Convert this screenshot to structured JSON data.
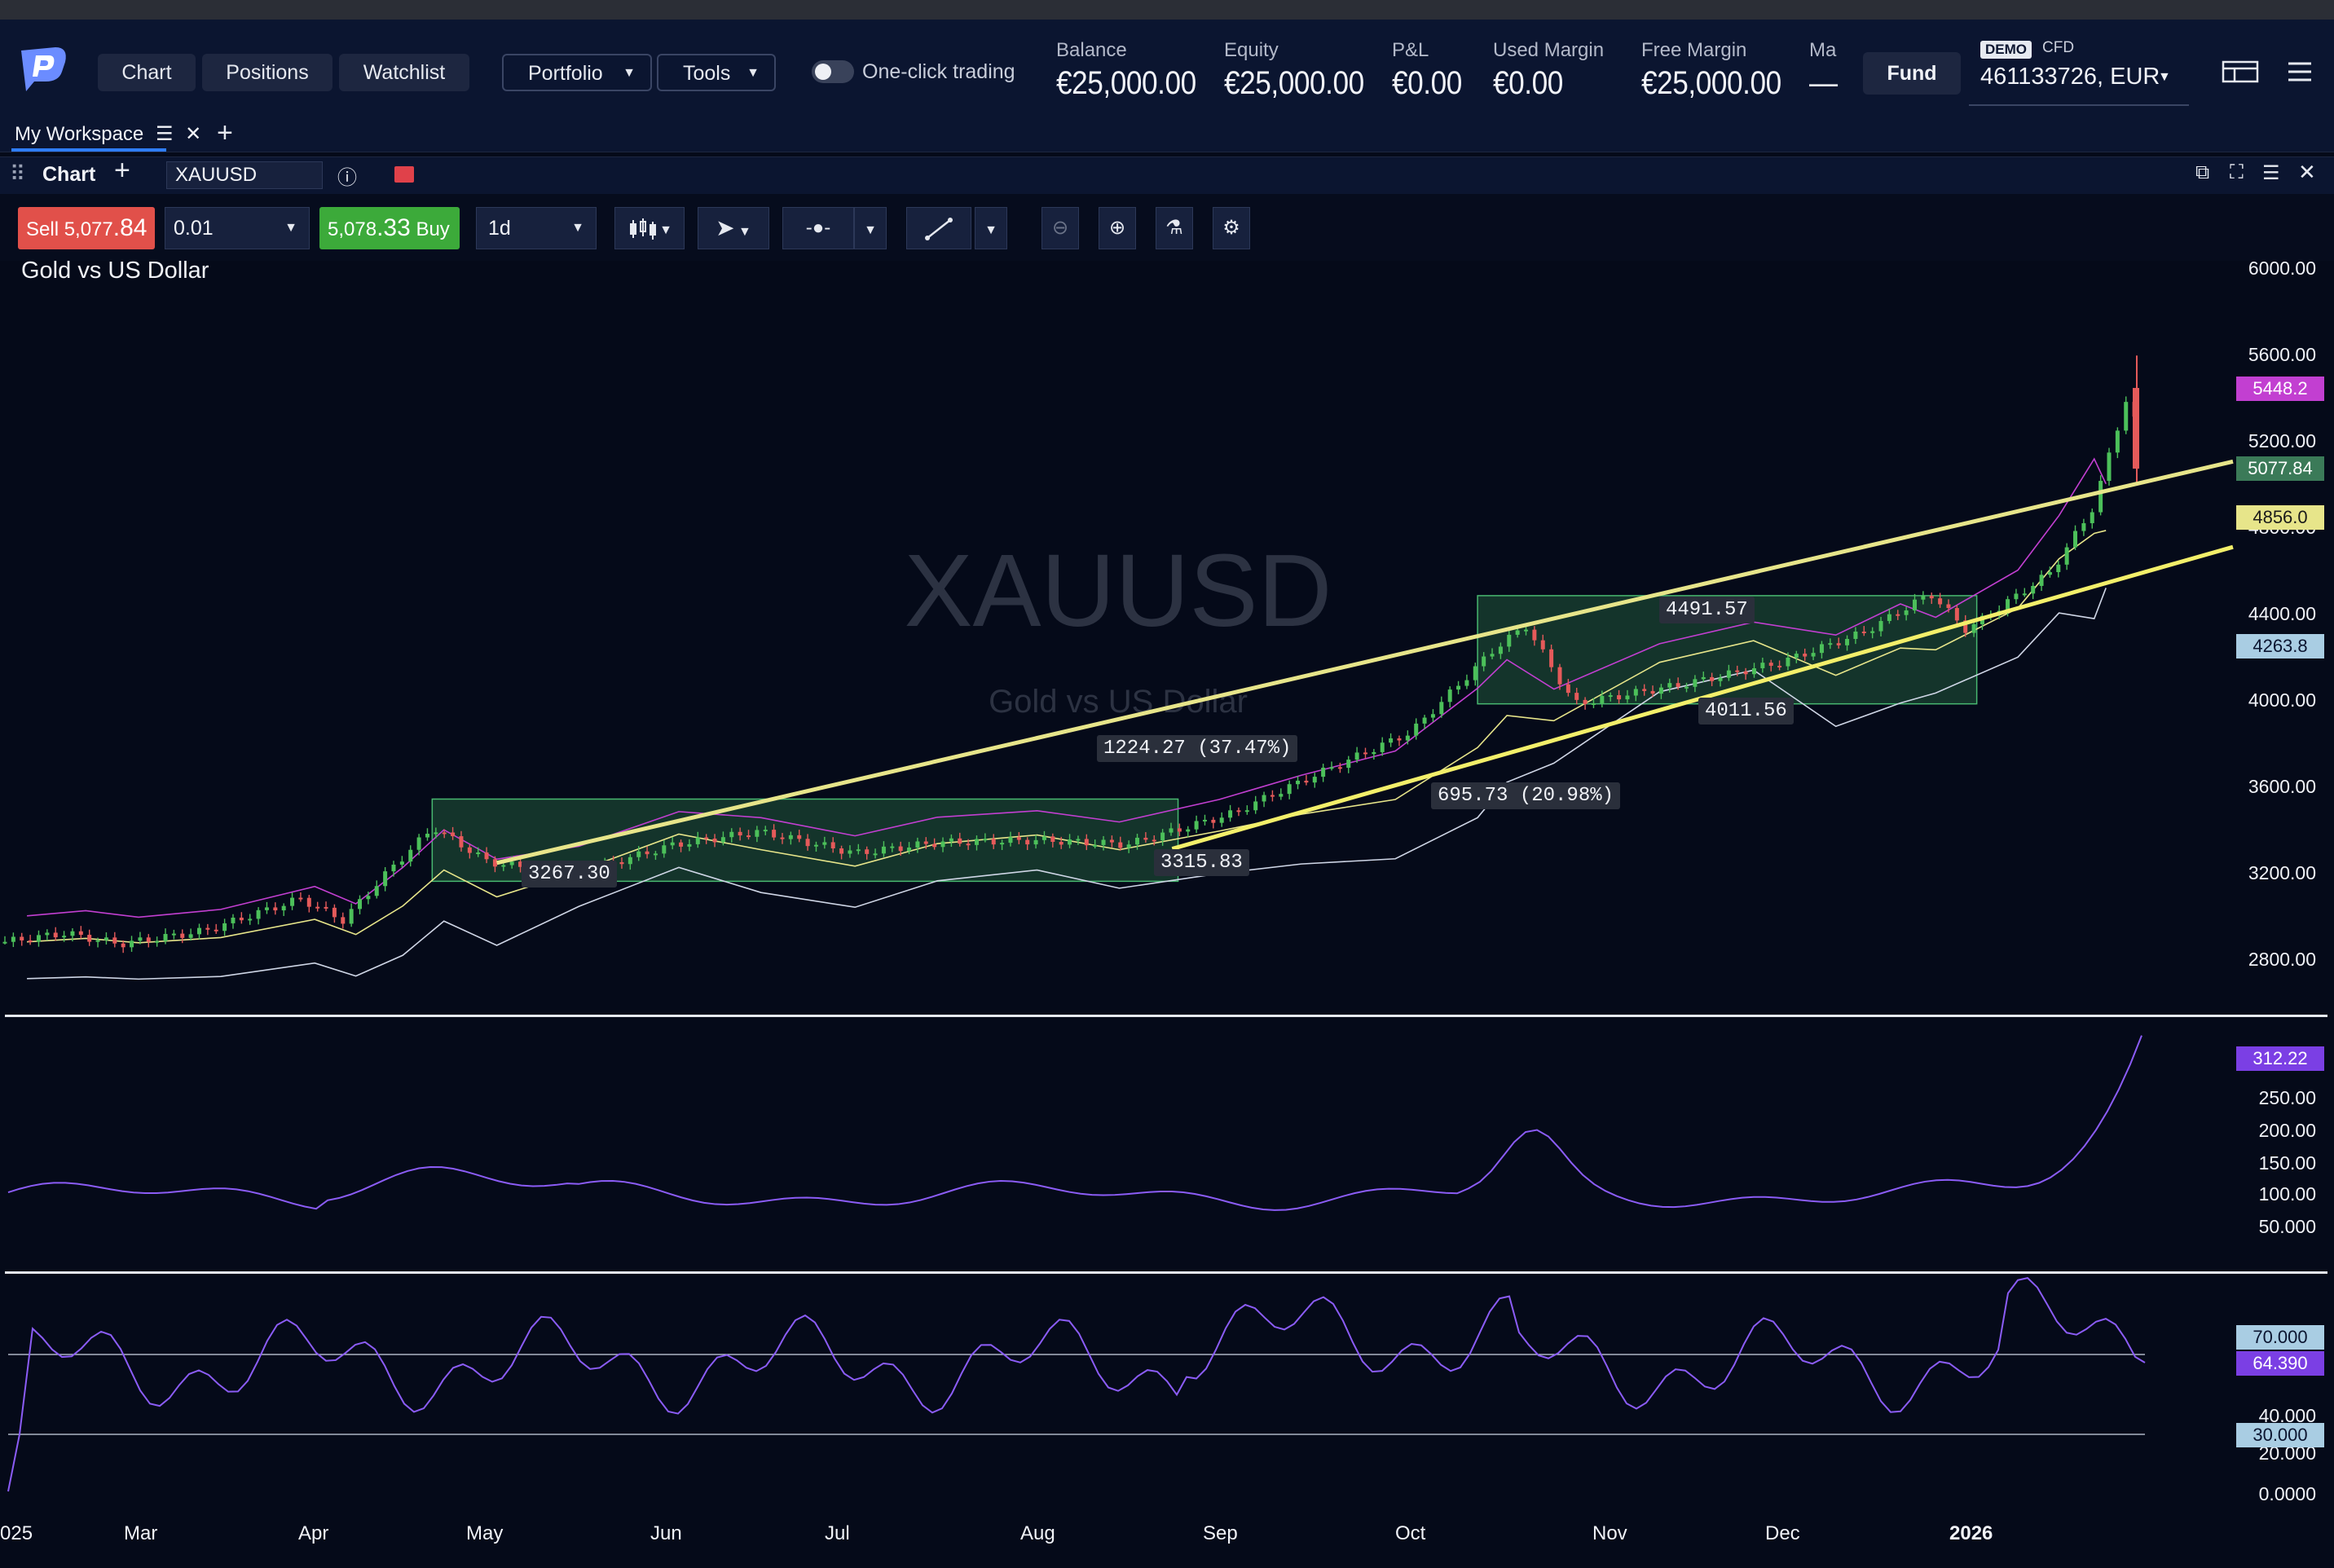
{
  "header": {
    "nav": [
      "Chart",
      "Positions",
      "Watchlist"
    ],
    "portfolio": "Portfolio",
    "tools": "Tools",
    "one_click": "One-click trading",
    "stats": [
      {
        "label": "Balance",
        "value": "€25,000.00"
      },
      {
        "label": "Equity",
        "value": "€25,000.00"
      },
      {
        "label": "P&L",
        "value": "€0.00"
      },
      {
        "label": "Used Margin",
        "value": "€0.00"
      },
      {
        "label": "Free Margin",
        "value": "€25,000.00"
      },
      {
        "label": "Ma",
        "value": "—"
      }
    ],
    "fund": "Fund",
    "account": {
      "demo": "DEMO",
      "type": "CFD",
      "number": "461133726, EUR"
    }
  },
  "workspace": {
    "tab": "My Workspace"
  },
  "panel": {
    "title": "Chart",
    "symbol": "XAUUSD"
  },
  "toolbar": {
    "sell_prefix": "Sell 5,077",
    "sell_big": ".84",
    "quantity": "0.01",
    "buy_prefix": "5,078",
    "buy_big": ".33",
    "buy_suffix": " Buy",
    "timeframe": "1d"
  },
  "chart_data": {
    "type": "candlestick",
    "title": "Gold vs US Dollar",
    "watermark": "XAUUSD",
    "watermark_sub": "Gold vs US Dollar",
    "x_labels": [
      "025",
      "Mar",
      "Apr",
      "May",
      "Jun",
      "Jul",
      "Aug",
      "Sep",
      "Oct",
      "Nov",
      "Dec",
      "2026"
    ],
    "price_axis": [
      "6000.00",
      "5600.00",
      "5200.00",
      "4800.00",
      "4400.00",
      "4000.00",
      "3600.00",
      "3200.00",
      "2800.00"
    ],
    "price_tags": [
      {
        "value": "5448.2",
        "color": "#c23fd1"
      },
      {
        "value": "5077.84",
        "color": "#3b7a58"
      },
      {
        "value": "4856.0",
        "color": "#e7e58a"
      },
      {
        "value": "4263.8",
        "color": "#a9cde3"
      }
    ],
    "annotations": [
      "4491.57",
      "4011.56",
      "1224.27 (37.47%)",
      "695.73 (20.98%)",
      "3267.30",
      "3315.83"
    ],
    "price_series": [
      [
        "2025-02-10",
        2890
      ],
      [
        "2025-02-20",
        2930
      ],
      [
        "2025-03-01",
        2880
      ],
      [
        "2025-03-15",
        2940
      ],
      [
        "2025-03-31",
        3090
      ],
      [
        "2025-04-07",
        2990
      ],
      [
        "2025-04-15",
        3230
      ],
      [
        "2025-04-22",
        3420
      ],
      [
        "2025-05-01",
        3260
      ],
      [
        "2025-05-15",
        3200
      ],
      [
        "2025-06-01",
        3340
      ],
      [
        "2025-06-15",
        3400
      ],
      [
        "2025-07-01",
        3300
      ],
      [
        "2025-07-15",
        3350
      ],
      [
        "2025-08-01",
        3360
      ],
      [
        "2025-08-15",
        3340
      ],
      [
        "2025-09-01",
        3480
      ],
      [
        "2025-09-15",
        3660
      ],
      [
        "2025-10-01",
        3860
      ],
      [
        "2025-10-15",
        4250
      ],
      [
        "2025-10-20",
        4350
      ],
      [
        "2025-10-28",
        3990
      ],
      [
        "2025-11-15",
        4080
      ],
      [
        "2025-12-01",
        4180
      ],
      [
        "2025-12-15",
        4320
      ],
      [
        "2025-12-26",
        4500
      ],
      [
        "2026-01-01",
        4330
      ],
      [
        "2026-01-15",
        4600
      ],
      [
        "2026-01-22",
        4900
      ],
      [
        "2026-01-28",
        5450
      ],
      [
        "2026-01-30",
        5077.84
      ]
    ],
    "indicator1_axis": [
      "312.22",
      "250.00",
      "200.00",
      "150.00",
      "100.00",
      "50.000"
    ],
    "indicator1_tag": "312.22",
    "indicator2_axis": [
      "70.000",
      "64.390",
      "40.000",
      "30.000",
      "20.000",
      "0.0000"
    ],
    "indicator2_tags": [
      "70.000",
      "64.390",
      "30.000"
    ]
  }
}
